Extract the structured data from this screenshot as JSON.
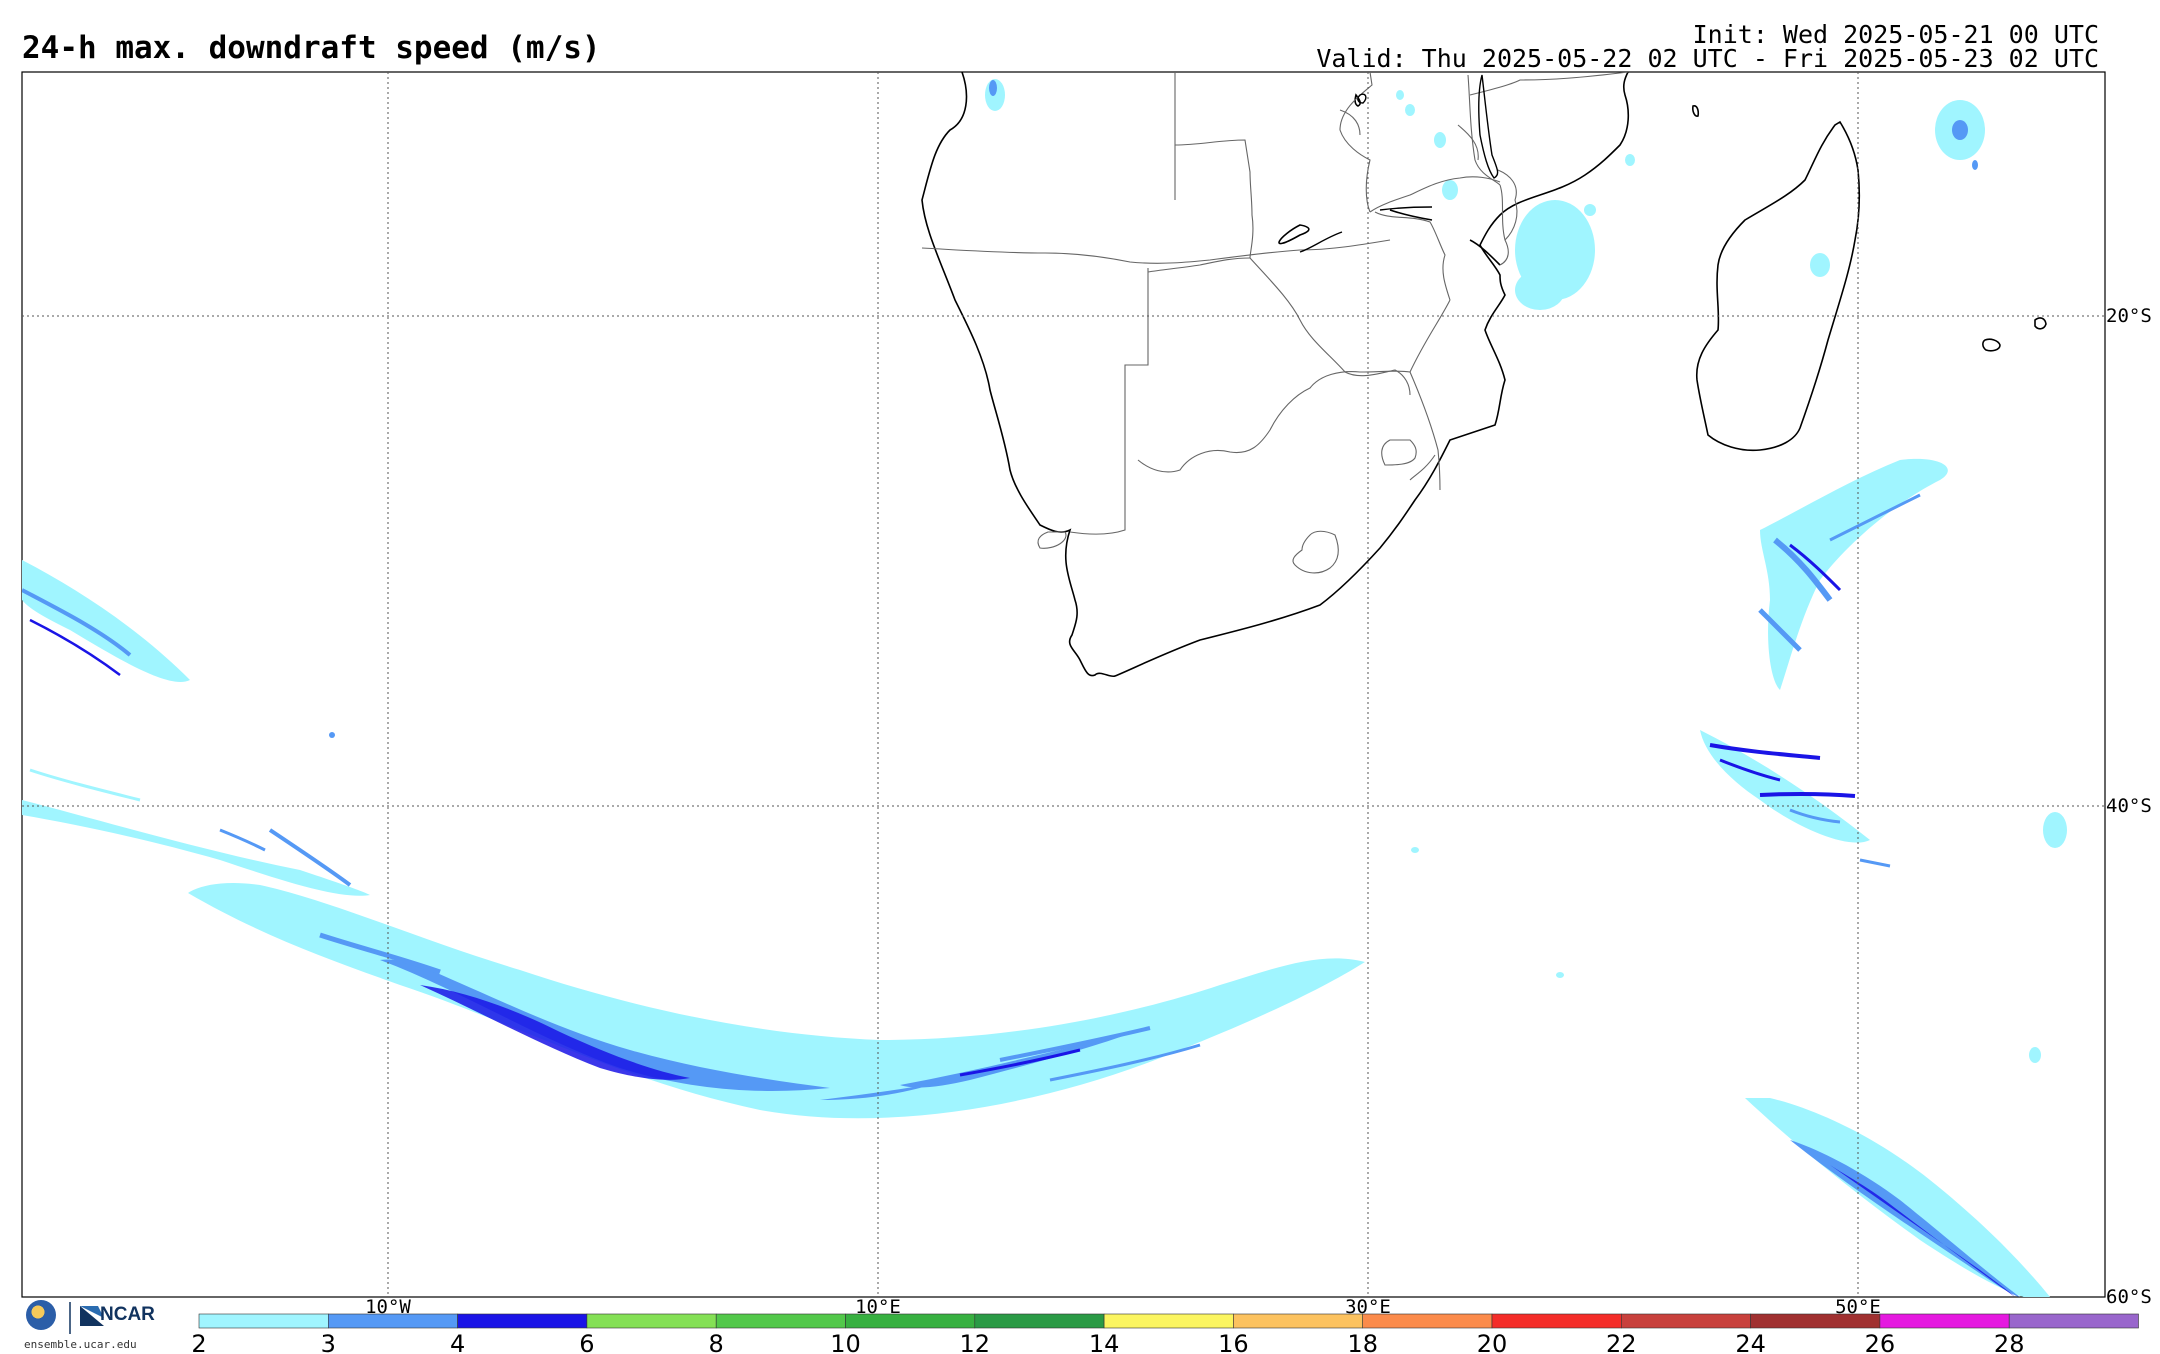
{
  "header": {
    "title": "24-h max. downdraft speed (m/s)",
    "init": "Init: Wed 2025-05-21 00 UTC",
    "valid": "Valid: Thu 2025-05-22 02 UTC - Fri 2025-05-23 02 UTC"
  },
  "map": {
    "lon_labels": [
      "10°W",
      "10°E",
      "30°E",
      "50°E"
    ],
    "lat_labels": [
      "20°S",
      "40°S",
      "60°S"
    ]
  },
  "colorbar": {
    "ticks": [
      "2",
      "3",
      "4",
      "6",
      "8",
      "10",
      "12",
      "14",
      "16",
      "18",
      "20",
      "22",
      "24",
      "26",
      "28"
    ],
    "colors": [
      "#a0f5ff",
      "#5599f5",
      "#1a14e6",
      "#84e055",
      "#52c84a",
      "#37b040",
      "#2a9a45",
      "#fbf560",
      "#fcc25f",
      "#fb8b4b",
      "#f42c28",
      "#c8403c",
      "#a03030",
      "#e519e0",
      "#9966cc"
    ]
  },
  "footer": {
    "credit": "ensemble.ucar.edu",
    "logo_nsf": "NSF",
    "logo_ncar": "NCAR"
  }
}
